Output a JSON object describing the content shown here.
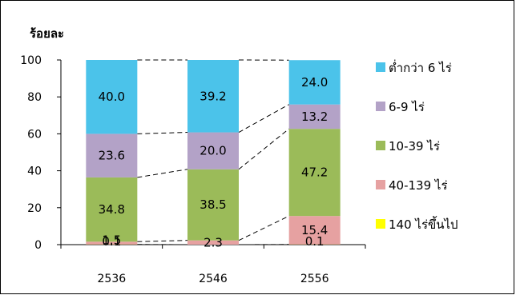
{
  "chart_data": {
    "type": "bar",
    "stacked": true,
    "ylabel": "ร้อยละ",
    "ylim": [
      0,
      100
    ],
    "yticks": [
      0,
      20,
      40,
      60,
      80,
      100
    ],
    "categories": [
      "2536",
      "2546",
      "2556"
    ],
    "series": [
      {
        "name": "140 ไร่ขึ้นไป",
        "color": "#FFFF00",
        "values": [
          0.1,
          0.0,
          0.1
        ],
        "labels": [
          "0.1",
          "",
          "0.1"
        ]
      },
      {
        "name": "40-139 ไร่",
        "color": "#E6A1A1",
        "values": [
          1.5,
          2.3,
          15.4
        ],
        "labels": [
          "1.5",
          "2.3",
          "15.4"
        ]
      },
      {
        "name": "10-39 ไร่",
        "color": "#9BBB59",
        "values": [
          34.8,
          38.5,
          47.2
        ],
        "labels": [
          "34.8",
          "38.5",
          "47.2"
        ]
      },
      {
        "name": "6-9 ไร่",
        "color": "#B3A2C7",
        "values": [
          23.6,
          20.0,
          13.2
        ],
        "labels": [
          "23.6",
          "20.0",
          "13.2"
        ]
      },
      {
        "name": "ต่ำกว่า 6 ไร่",
        "color": "#4BC3EA",
        "values": [
          40.0,
          39.2,
          24.0
        ],
        "labels": [
          "40.0",
          "39.2",
          "24.0"
        ]
      }
    ],
    "series_lines": true,
    "legend": "right",
    "grid": false
  }
}
